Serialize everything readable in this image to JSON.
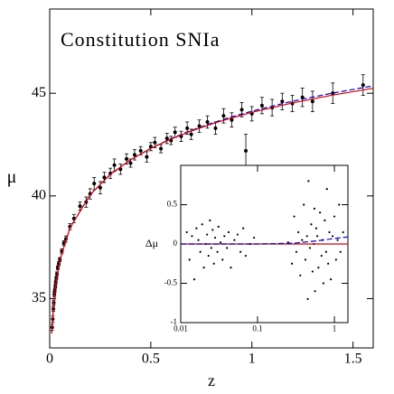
{
  "chart_data": [
    {
      "type": "scatter",
      "annotation": "Constitution SNIa",
      "xlabel": "z",
      "ylabel": "μ",
      "xlim": [
        0,
        1.6
      ],
      "ylim": [
        32.6,
        49.1
      ],
      "xticks": [
        0,
        0.5,
        1,
        1.5
      ],
      "yticks": [
        35,
        40,
        45
      ],
      "points": {
        "color": "#000000",
        "x": [
          0.012,
          0.015,
          0.018,
          0.02,
          0.023,
          0.025,
          0.028,
          0.03,
          0.033,
          0.036,
          0.04,
          0.045,
          0.05,
          0.06,
          0.07,
          0.08,
          0.1,
          0.12,
          0.15,
          0.18,
          0.2,
          0.22,
          0.25,
          0.27,
          0.3,
          0.32,
          0.35,
          0.38,
          0.4,
          0.42,
          0.45,
          0.48,
          0.5,
          0.52,
          0.55,
          0.58,
          0.6,
          0.62,
          0.65,
          0.68,
          0.7,
          0.74,
          0.78,
          0.82,
          0.86,
          0.9,
          0.95,
          0.97,
          1.0,
          1.05,
          1.1,
          1.15,
          1.2,
          1.25,
          1.3,
          1.4,
          1.55
        ],
        "values": [
          33.6,
          34.0,
          34.5,
          34.8,
          35.2,
          35.4,
          35.6,
          35.8,
          36.0,
          36.2,
          36.5,
          36.7,
          36.9,
          37.3,
          37.7,
          37.9,
          38.5,
          38.9,
          39.5,
          39.7,
          40.1,
          40.6,
          40.4,
          40.9,
          41.1,
          41.5,
          41.3,
          41.8,
          41.6,
          42.0,
          42.2,
          41.9,
          42.4,
          42.6,
          42.3,
          42.8,
          42.7,
          43.1,
          42.9,
          43.3,
          43.0,
          43.4,
          43.6,
          43.3,
          43.9,
          43.7,
          44.2,
          42.2,
          44.0,
          44.4,
          44.3,
          44.6,
          44.5,
          44.8,
          44.6,
          45.0,
          45.4
        ],
        "errors": [
          0.15,
          0.15,
          0.12,
          0.12,
          0.12,
          0.1,
          0.1,
          0.1,
          0.1,
          0.1,
          0.1,
          0.1,
          0.1,
          0.12,
          0.12,
          0.15,
          0.15,
          0.2,
          0.2,
          0.25,
          0.25,
          0.3,
          0.3,
          0.25,
          0.25,
          0.3,
          0.25,
          0.25,
          0.2,
          0.25,
          0.2,
          0.25,
          0.2,
          0.25,
          0.2,
          0.25,
          0.2,
          0.25,
          0.25,
          0.3,
          0.25,
          0.3,
          0.3,
          0.3,
          0.35,
          0.35,
          0.35,
          0.8,
          0.35,
          0.4,
          0.4,
          0.4,
          0.4,
          0.45,
          0.5,
          0.5,
          0.5
        ]
      },
      "lines": [
        {
          "color": "#0000cc",
          "dashed": true,
          "x": [
            0.01,
            0.02,
            0.03,
            0.05,
            0.1,
            0.2,
            0.3,
            0.4,
            0.5,
            0.6,
            0.7,
            0.8,
            0.9,
            1.0,
            1.2,
            1.4,
            1.6
          ],
          "values": [
            33.3,
            34.84,
            35.73,
            36.87,
            38.44,
            40.06,
            41.05,
            41.76,
            42.32,
            42.79,
            43.19,
            43.54,
            43.85,
            44.13,
            44.61,
            45.01,
            45.36
          ]
        },
        {
          "color": "#dd0000",
          "dashed": false,
          "x": [
            0.01,
            0.02,
            0.03,
            0.05,
            0.1,
            0.2,
            0.3,
            0.4,
            0.5,
            0.6,
            0.7,
            0.8,
            0.9,
            1.0,
            1.2,
            1.4,
            1.6
          ],
          "values": [
            33.31,
            34.84,
            35.73,
            36.87,
            38.44,
            40.06,
            41.05,
            41.76,
            42.32,
            42.77,
            43.16,
            43.5,
            43.8,
            44.07,
            44.53,
            44.91,
            45.24
          ]
        }
      ]
    },
    {
      "type": "scatter",
      "ylabel": "Δμ",
      "log_x": true,
      "xlim": [
        0.01,
        1.5
      ],
      "ylim": [
        -1,
        1
      ],
      "xticks": [
        0.01,
        0.1,
        1
      ],
      "yticks": [
        -1,
        -0.5,
        0,
        0.5
      ],
      "points": {
        "color": "#000000",
        "x": [
          0.012,
          0.013,
          0.014,
          0.015,
          0.016,
          0.017,
          0.018,
          0.019,
          0.02,
          0.021,
          0.022,
          0.023,
          0.024,
          0.025,
          0.026,
          0.027,
          0.028,
          0.03,
          0.031,
          0.033,
          0.035,
          0.037,
          0.04,
          0.042,
          0.045,
          0.05,
          0.055,
          0.06,
          0.065,
          0.07,
          0.08,
          0.09,
          0.25,
          0.28,
          0.3,
          0.32,
          0.34,
          0.36,
          0.38,
          0.4,
          0.42,
          0.44,
          0.46,
          0.48,
          0.5,
          0.52,
          0.54,
          0.56,
          0.58,
          0.6,
          0.62,
          0.65,
          0.68,
          0.7,
          0.72,
          0.75,
          0.78,
          0.8,
          0.83,
          0.86,
          0.9,
          0.95,
          1.0,
          1.05,
          1.1,
          1.15,
          1.2,
          1.3,
          0.45,
          0.55
        ],
        "values": [
          0.15,
          -0.2,
          0.1,
          -0.45,
          0.2,
          0.05,
          -0.1,
          0.25,
          -0.3,
          0.0,
          0.12,
          -0.15,
          0.3,
          -0.05,
          0.18,
          -0.25,
          0.08,
          -0.1,
          0.22,
          0.02,
          -0.2,
          0.1,
          -0.05,
          0.15,
          -0.3,
          0.05,
          0.12,
          -0.1,
          0.2,
          -0.15,
          0.0,
          0.08,
          0.02,
          -0.25,
          0.35,
          -0.1,
          0.15,
          -0.4,
          0.05,
          0.5,
          -0.2,
          0.1,
          0.8,
          -0.05,
          0.25,
          -0.35,
          0.0,
          -0.6,
          0.2,
          0.1,
          -0.3,
          0.4,
          -0.15,
          0.05,
          -0.5,
          0.3,
          -0.1,
          0.7,
          -0.25,
          0.15,
          -0.45,
          0.1,
          0.35,
          -0.2,
          0.05,
          0.5,
          -0.1,
          0.15,
          -0.7,
          0.45
        ]
      },
      "lines": [
        {
          "color": "#dd0000",
          "dashed": false,
          "x": [
            0.01,
            1.5
          ],
          "values": [
            0,
            0
          ]
        },
        {
          "color": "#0000cc",
          "dashed": true,
          "x": [
            0.01,
            0.1,
            0.3,
            0.6,
            1.0,
            1.5
          ],
          "values": [
            0,
            0,
            0.01,
            0.04,
            0.07,
            0.09
          ]
        }
      ]
    }
  ]
}
